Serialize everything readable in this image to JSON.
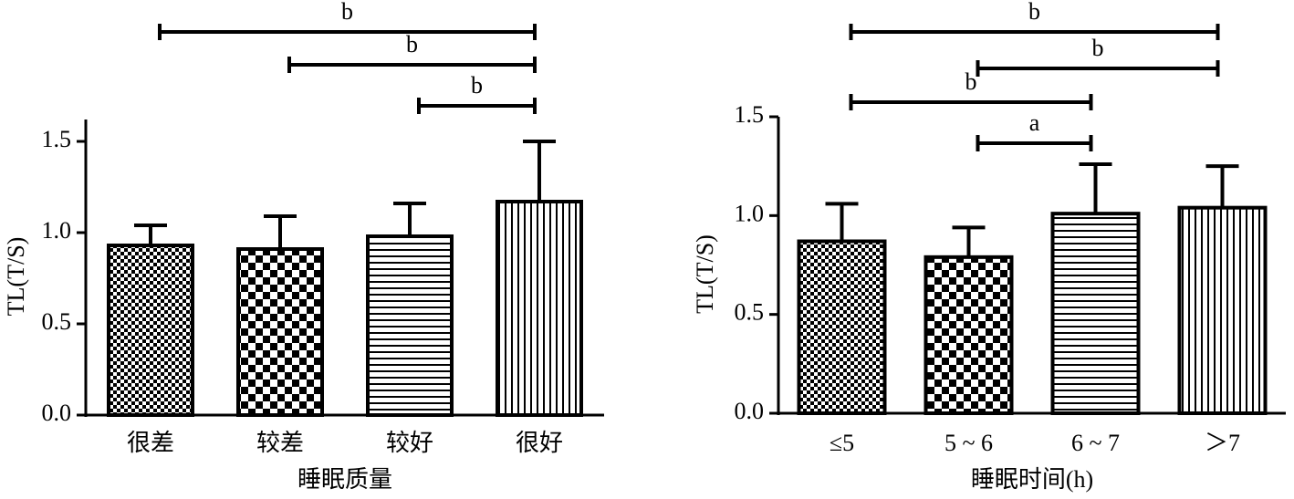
{
  "chart_data": [
    {
      "type": "bar",
      "y_label": "TL(T/S)",
      "x_label": "睡眠质量",
      "categories": [
        "很差",
        "较差",
        "较好",
        "很好"
      ],
      "values": [
        0.93,
        0.91,
        0.98,
        1.17
      ],
      "errors": [
        0.11,
        0.18,
        0.18,
        0.33
      ],
      "patterns": [
        "fine-checker",
        "coarse-checker",
        "horizontal-lines",
        "vertical-lines"
      ],
      "ylim": [
        0,
        1.62
      ],
      "yticks": [
        {
          "value": 0,
          "label": "0.0"
        },
        0.5,
        {
          "value": 1,
          "label": "1.0"
        },
        1.5
      ],
      "brackets": [
        {
          "from": 0,
          "to": 3,
          "label": "b"
        },
        {
          "from": 1,
          "to": 3,
          "label": "b"
        },
        {
          "from": 2,
          "to": 3,
          "label": "b"
        }
      ]
    },
    {
      "type": "bar",
      "y_label": "TL(T/S)",
      "x_label": "睡眠时间(h)",
      "categories": [
        "≤5",
        "5 ~ 6",
        "6 ~ 7",
        "＞7"
      ],
      "values": [
        0.87,
        0.79,
        1.01,
        1.04
      ],
      "errors": [
        0.19,
        0.15,
        0.25,
        0.21
      ],
      "patterns": [
        "fine-checker",
        "coarse-checker",
        "horizontal-lines",
        "vertical-lines"
      ],
      "ylim": [
        0,
        1.5
      ],
      "yticks": [
        {
          "value": 0,
          "label": "0.0"
        },
        0.5,
        {
          "value": 1,
          "label": "1.0"
        },
        1.5
      ],
      "brackets": [
        {
          "from": 0,
          "to": 3,
          "label": "b"
        },
        {
          "from": 1,
          "to": 3,
          "label": "b"
        },
        {
          "from": 0,
          "to": 2,
          "label": "b"
        },
        {
          "from": 1,
          "to": 2,
          "label": "a"
        }
      ]
    }
  ]
}
